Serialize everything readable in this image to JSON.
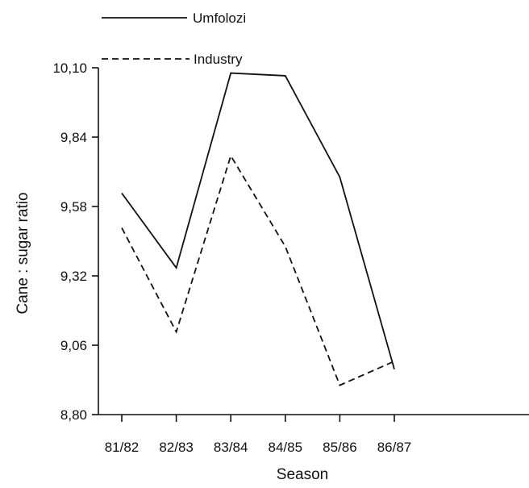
{
  "chart_data": {
    "type": "line",
    "title": "",
    "xlabel": "Season",
    "ylabel": "Cane : sugar ratio",
    "categories": [
      "81/82",
      "82/83",
      "83/84",
      "84/85",
      "85/86",
      "86/87"
    ],
    "yticks": [
      "8,80",
      "9,06",
      "9,32",
      "9,58",
      "9,84",
      "10,10"
    ],
    "ytick_values": [
      8.8,
      9.06,
      9.32,
      9.58,
      9.84,
      10.1
    ],
    "ylim": [
      8.8,
      10.1
    ],
    "grid": false,
    "legend_position": "top-left",
    "series": [
      {
        "name": "Umfolozi",
        "style": "solid",
        "values": [
          9.63,
          9.35,
          10.08,
          10.07,
          9.69,
          8.97
        ]
      },
      {
        "name": "Industry",
        "style": "dashed",
        "values": [
          9.5,
          9.11,
          9.77,
          9.43,
          8.91,
          9.0
        ]
      }
    ],
    "colors": {
      "ink": "#111111",
      "background": "#ffffff"
    }
  }
}
